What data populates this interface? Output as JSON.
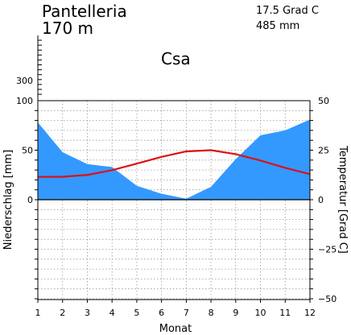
{
  "header": {
    "station": "Pantelleria",
    "elevation": "170 m",
    "mean_temp": "17.5 Grad C",
    "annual_precip": "485 mm",
    "climate_class": "Csa"
  },
  "chart_data": {
    "type": "area",
    "x": [
      1,
      2,
      3,
      4,
      5,
      6,
      7,
      8,
      9,
      10,
      11,
      12
    ],
    "xlabel": "Monat",
    "ylabel_left": "Niederschlag [mm]",
    "ylabel_right": "Temperatur [Grad C]",
    "precip_ticks": [
      "0",
      "50",
      "100",
      "300"
    ],
    "temp_ticks": [
      "−50",
      "−25",
      "0",
      "25",
      "50"
    ],
    "precip_lim": [
      -100,
      100
    ],
    "temp_lim": [
      -50,
      50
    ],
    "grid": true,
    "colors": {
      "precipitation": "#3399ff",
      "temperature": "#dd1111"
    },
    "series": [
      {
        "key": "precipitation",
        "values": [
          78,
          48,
          36,
          33,
          14,
          6,
          1,
          13,
          41,
          65,
          70,
          81
        ]
      },
      {
        "key": "temperature",
        "values": [
          11.5,
          11.6,
          12.5,
          14.9,
          18.2,
          21.6,
          24.4,
          25.0,
          23.0,
          19.8,
          16.1,
          12.9
        ]
      }
    ]
  }
}
